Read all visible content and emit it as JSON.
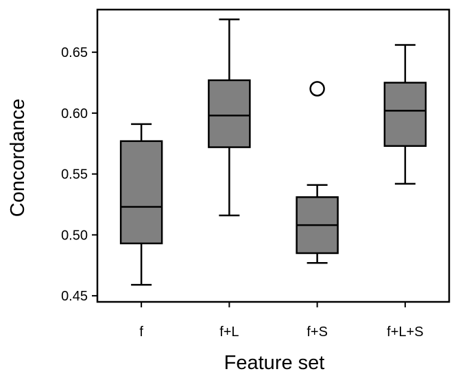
{
  "chart_data": {
    "type": "box",
    "xlabel": "Feature set",
    "ylabel": "Concordance",
    "categories": [
      "f",
      "f+L",
      "f+S",
      "f+L+S"
    ],
    "ylim": [
      0.445,
      0.685
    ],
    "yticks": [
      0.45,
      0.5,
      0.55,
      0.6,
      0.65
    ],
    "ytick_labels": [
      "0.45",
      "0.50",
      "0.55",
      "0.60",
      "0.65"
    ],
    "grid": false,
    "legend": "none",
    "boxes": [
      {
        "category": "f",
        "whisker_low": 0.459,
        "q1": 0.493,
        "median": 0.523,
        "q3": 0.577,
        "whisker_high": 0.591,
        "outliers": []
      },
      {
        "category": "f+L",
        "whisker_low": 0.516,
        "q1": 0.572,
        "median": 0.598,
        "q3": 0.627,
        "whisker_high": 0.677,
        "outliers": []
      },
      {
        "category": "f+S",
        "whisker_low": 0.477,
        "q1": 0.485,
        "median": 0.508,
        "q3": 0.531,
        "whisker_high": 0.541,
        "outliers": [
          0.62
        ]
      },
      {
        "category": "f+L+S",
        "whisker_low": 0.542,
        "q1": 0.573,
        "median": 0.602,
        "q3": 0.625,
        "whisker_high": 0.656,
        "outliers": []
      }
    ],
    "colors": {
      "box_fill": "#808080",
      "line": "#000000",
      "outlier_fill": "#ffffff",
      "background": "#ffffff"
    }
  }
}
